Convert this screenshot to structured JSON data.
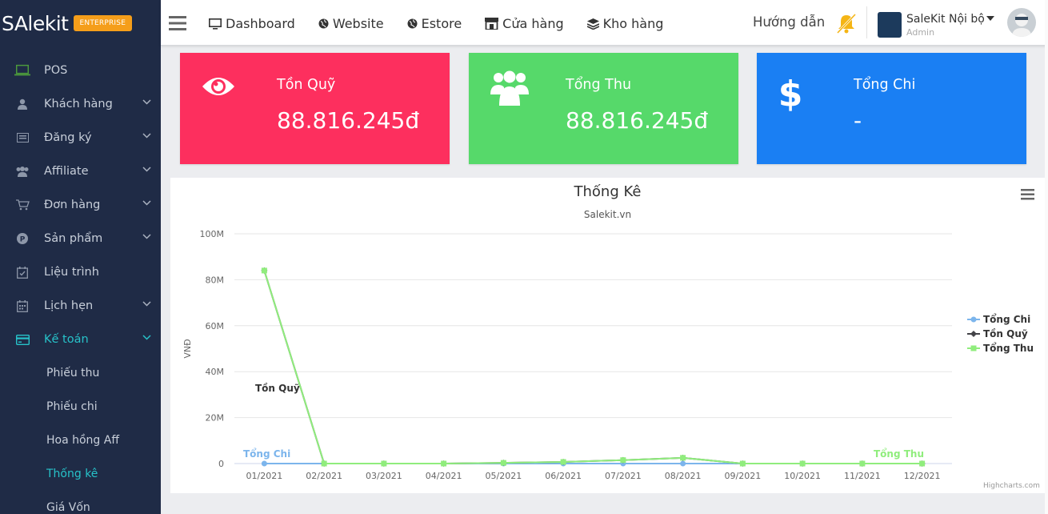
{
  "brand": {
    "logo": "SAlekit",
    "edition": "ENTERPRISE"
  },
  "sidebar": {
    "items": [
      {
        "label": "POS",
        "icon": "laptop-icon",
        "expandable": false
      },
      {
        "label": "Khách hàng",
        "icon": "user-icon",
        "expandable": true
      },
      {
        "label": "Đăng ký",
        "icon": "list-icon",
        "expandable": true
      },
      {
        "label": "Affiliate",
        "icon": "users-icon",
        "expandable": true
      },
      {
        "label": "Đơn hàng",
        "icon": "cart-icon",
        "expandable": true
      },
      {
        "label": "Sản phẩm",
        "icon": "product-icon",
        "expandable": true
      },
      {
        "label": "Liệu trình",
        "icon": "calendar-check-icon",
        "expandable": false
      },
      {
        "label": "Lịch hẹn",
        "icon": "calendar-icon",
        "expandable": true
      },
      {
        "label": "Kế toán",
        "icon": "credit-card-icon",
        "expandable": true,
        "active": true
      }
    ],
    "subitems": [
      {
        "label": "Phiếu thu"
      },
      {
        "label": "Phiếu chi"
      },
      {
        "label": "Hoa hồng Aff"
      },
      {
        "label": "Thống kê",
        "active": true
      },
      {
        "label": "Giá Vốn"
      }
    ]
  },
  "topbar": {
    "nav": [
      {
        "label": "Dashboard",
        "icon": "monitor-icon"
      },
      {
        "label": "Website",
        "icon": "globe-icon"
      },
      {
        "label": "Estore",
        "icon": "globe-icon"
      },
      {
        "label": "Cửa hàng",
        "icon": "store-icon"
      },
      {
        "label": "Kho hàng",
        "icon": "layers-icon"
      }
    ],
    "guide": "Hướng dẫn",
    "user": {
      "name": "SaleKit Nội bộ",
      "role": "Admin"
    }
  },
  "cards": [
    {
      "label": "Tồn Quỹ",
      "value": "88.816.245đ",
      "icon": "eye-icon",
      "color": "#fd2f5e"
    },
    {
      "label": "Tổng Thu",
      "value": "88.816.245đ",
      "icon": "users-icon",
      "color": "#56d96a"
    },
    {
      "label": "Tổng Chi",
      "value": "-",
      "icon": "dollar-icon",
      "color": "#1a7ff3"
    }
  ],
  "chart_data": {
    "type": "line",
    "title": "Thống Kê",
    "subtitle": "Salekit.vn",
    "ylabel": "VNĐ",
    "xlabel": "",
    "ylim": [
      0,
      100000000
    ],
    "yticks": [
      "0",
      "20M",
      "40M",
      "60M",
      "80M",
      "100M"
    ],
    "categories": [
      "01/2021",
      "02/2021",
      "03/2021",
      "04/2021",
      "05/2021",
      "06/2021",
      "07/2021",
      "08/2021",
      "09/2021",
      "10/2021",
      "11/2021",
      "12/2021"
    ],
    "series": [
      {
        "name": "Tổng Chi",
        "color": "#7cb5ec",
        "values": [
          0,
          0,
          0,
          0,
          0,
          0,
          0,
          0,
          0,
          0,
          0,
          0
        ]
      },
      {
        "name": "Tồn Quỹ",
        "color": "#434348",
        "values": [
          84000000,
          0,
          0,
          0,
          300000,
          700000,
          1500000,
          2500000,
          0,
          0,
          0,
          0
        ]
      },
      {
        "name": "Tổng Thu",
        "color": "#90ed7d",
        "values": [
          84000000,
          0,
          0,
          0,
          300000,
          700000,
          1500000,
          2500000,
          0,
          0,
          0,
          0
        ]
      }
    ],
    "annotations": [
      "Tồn Quỹ",
      "Tổng Chi",
      "Tổng Thu"
    ],
    "legend_position": "right",
    "grid": true,
    "credits": "Highcharts.com"
  }
}
